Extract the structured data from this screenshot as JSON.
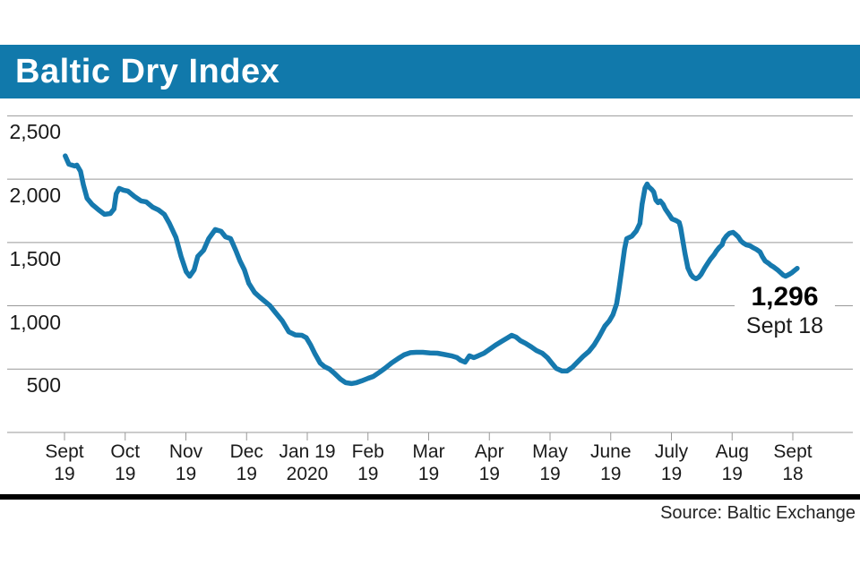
{
  "title": "Baltic Dry Index",
  "source": "Source: Baltic Exchange",
  "annotation": {
    "value": "1,296",
    "date": "Sept 18"
  },
  "colors": {
    "banner": "#1179AB",
    "line": "#1679AE",
    "grid": "#999999",
    "tick": "#999999",
    "text": "#1a1a1a",
    "separator": "#000000"
  },
  "chart_data": {
    "type": "line",
    "title": "Baltic Dry Index",
    "grid": "horizontal",
    "legend": "none",
    "ylim": [
      0,
      2500
    ],
    "y_ticks": [
      500,
      1000,
      1500,
      2000,
      2500
    ],
    "y_tick_labels": [
      "500",
      "1,000",
      "1,500",
      "2,000",
      "2,500"
    ],
    "x_tick_labels": [
      [
        "Sept",
        "19"
      ],
      [
        "Oct",
        "19"
      ],
      [
        "Nov",
        "19"
      ],
      [
        "Dec",
        "19"
      ],
      [
        "Jan 19",
        "2020"
      ],
      [
        "Feb",
        "19"
      ],
      [
        "Mar",
        "19"
      ],
      [
        "Apr",
        "19"
      ],
      [
        "May",
        "19"
      ],
      [
        "June",
        "19"
      ],
      [
        "July",
        "19"
      ],
      [
        "Aug",
        "19"
      ],
      [
        "Sept",
        "18"
      ]
    ],
    "x_range_note": "t = fraction of axis from Sept 19 2019 tick to Sept 18 2020 tick",
    "last_point": {
      "date": "Sept 18",
      "value": 1296
    },
    "series": [
      {
        "name": "Baltic Dry Index",
        "points": [
          [
            0.001,
            2184
          ],
          [
            0.006,
            2118
          ],
          [
            0.01,
            2111
          ],
          [
            0.014,
            2104
          ],
          [
            0.017,
            2111
          ],
          [
            0.022,
            2062
          ],
          [
            0.026,
            1955
          ],
          [
            0.031,
            1849
          ],
          [
            0.038,
            1800
          ],
          [
            0.047,
            1757
          ],
          [
            0.055,
            1722
          ],
          [
            0.063,
            1729
          ],
          [
            0.068,
            1765
          ],
          [
            0.071,
            1885
          ],
          [
            0.075,
            1927
          ],
          [
            0.081,
            1913
          ],
          [
            0.087,
            1906
          ],
          [
            0.096,
            1864
          ],
          [
            0.105,
            1828
          ],
          [
            0.112,
            1821
          ],
          [
            0.121,
            1779
          ],
          [
            0.129,
            1757
          ],
          [
            0.137,
            1722
          ],
          [
            0.144,
            1651
          ],
          [
            0.153,
            1540
          ],
          [
            0.16,
            1390
          ],
          [
            0.167,
            1270
          ],
          [
            0.172,
            1234
          ],
          [
            0.178,
            1284
          ],
          [
            0.183,
            1390
          ],
          [
            0.191,
            1439
          ],
          [
            0.198,
            1531
          ],
          [
            0.207,
            1602
          ],
          [
            0.215,
            1588
          ],
          [
            0.221,
            1545
          ],
          [
            0.228,
            1531
          ],
          [
            0.235,
            1439
          ],
          [
            0.241,
            1354
          ],
          [
            0.247,
            1284
          ],
          [
            0.253,
            1178
          ],
          [
            0.261,
            1105
          ],
          [
            0.268,
            1068
          ],
          [
            0.276,
            1030
          ],
          [
            0.282,
            1001
          ],
          [
            0.289,
            951
          ],
          [
            0.299,
            881
          ],
          [
            0.308,
            795
          ],
          [
            0.317,
            770
          ],
          [
            0.326,
            767
          ],
          [
            0.332,
            748
          ],
          [
            0.338,
            690
          ],
          [
            0.344,
            619
          ],
          [
            0.351,
            548
          ],
          [
            0.357,
            520
          ],
          [
            0.364,
            500
          ],
          [
            0.37,
            470
          ],
          [
            0.379,
            421
          ],
          [
            0.386,
            393
          ],
          [
            0.394,
            386
          ],
          [
            0.401,
            393
          ],
          [
            0.408,
            407
          ],
          [
            0.417,
            428
          ],
          [
            0.424,
            442
          ],
          [
            0.433,
            477
          ],
          [
            0.44,
            506
          ],
          [
            0.449,
            548
          ],
          [
            0.458,
            583
          ],
          [
            0.466,
            612
          ],
          [
            0.475,
            630
          ],
          [
            0.483,
            633
          ],
          [
            0.492,
            633
          ],
          [
            0.502,
            628
          ],
          [
            0.512,
            626
          ],
          [
            0.522,
            615
          ],
          [
            0.531,
            605
          ],
          [
            0.539,
            591
          ],
          [
            0.544,
            569
          ],
          [
            0.55,
            555
          ],
          [
            0.556,
            605
          ],
          [
            0.562,
            591
          ],
          [
            0.568,
            605
          ],
          [
            0.576,
            626
          ],
          [
            0.583,
            654
          ],
          [
            0.592,
            690
          ],
          [
            0.6,
            718
          ],
          [
            0.608,
            746
          ],
          [
            0.614,
            767
          ],
          [
            0.62,
            753
          ],
          [
            0.626,
            725
          ],
          [
            0.633,
            704
          ],
          [
            0.641,
            675
          ],
          [
            0.648,
            647
          ],
          [
            0.656,
            626
          ],
          [
            0.663,
            591
          ],
          [
            0.669,
            548
          ],
          [
            0.675,
            506
          ],
          [
            0.683,
            485
          ],
          [
            0.69,
            485
          ],
          [
            0.697,
            513
          ],
          [
            0.705,
            560
          ],
          [
            0.712,
            600
          ],
          [
            0.72,
            640
          ],
          [
            0.727,
            690
          ],
          [
            0.734,
            755
          ],
          [
            0.742,
            840
          ],
          [
            0.748,
            880
          ],
          [
            0.753,
            930
          ],
          [
            0.758,
            1015
          ],
          [
            0.761,
            1120
          ],
          [
            0.765,
            1280
          ],
          [
            0.769,
            1450
          ],
          [
            0.772,
            1530
          ],
          [
            0.779,
            1550
          ],
          [
            0.785,
            1590
          ],
          [
            0.79,
            1650
          ],
          [
            0.793,
            1800
          ],
          [
            0.797,
            1930
          ],
          [
            0.8,
            1962
          ],
          [
            0.802,
            1941
          ],
          [
            0.806,
            1920
          ],
          [
            0.809,
            1899
          ],
          [
            0.812,
            1835
          ],
          [
            0.815,
            1814
          ],
          [
            0.818,
            1828
          ],
          [
            0.822,
            1800
          ],
          [
            0.825,
            1765
          ],
          [
            0.83,
            1722
          ],
          [
            0.834,
            1687
          ],
          [
            0.84,
            1673
          ],
          [
            0.844,
            1658
          ],
          [
            0.846,
            1616
          ],
          [
            0.85,
            1482
          ],
          [
            0.852,
            1411
          ],
          [
            0.856,
            1298
          ],
          [
            0.86,
            1248
          ],
          [
            0.863,
            1227
          ],
          [
            0.867,
            1213
          ],
          [
            0.871,
            1227
          ],
          [
            0.874,
            1248
          ],
          [
            0.879,
            1298
          ],
          [
            0.883,
            1334
          ],
          [
            0.887,
            1369
          ],
          [
            0.892,
            1404
          ],
          [
            0.895,
            1432
          ],
          [
            0.899,
            1461
          ],
          [
            0.903,
            1482
          ],
          [
            0.905,
            1520
          ],
          [
            0.909,
            1552
          ],
          [
            0.913,
            1573
          ],
          [
            0.918,
            1580
          ],
          [
            0.921,
            1566
          ],
          [
            0.925,
            1545
          ],
          [
            0.929,
            1510
          ],
          [
            0.932,
            1496
          ],
          [
            0.936,
            1482
          ],
          [
            0.941,
            1475
          ],
          [
            0.945,
            1461
          ],
          [
            0.95,
            1446
          ],
          [
            0.955,
            1425
          ],
          [
            0.958,
            1390
          ],
          [
            0.962,
            1354
          ],
          [
            0.967,
            1334
          ],
          [
            0.97,
            1319
          ],
          [
            0.974,
            1305
          ],
          [
            0.979,
            1284
          ],
          [
            0.983,
            1263
          ],
          [
            0.987,
            1242
          ],
          [
            0.99,
            1234
          ],
          [
            0.995,
            1248
          ],
          [
            0.999,
            1263
          ],
          [
            1.002,
            1277
          ],
          [
            1.006,
            1296
          ]
        ]
      }
    ]
  }
}
